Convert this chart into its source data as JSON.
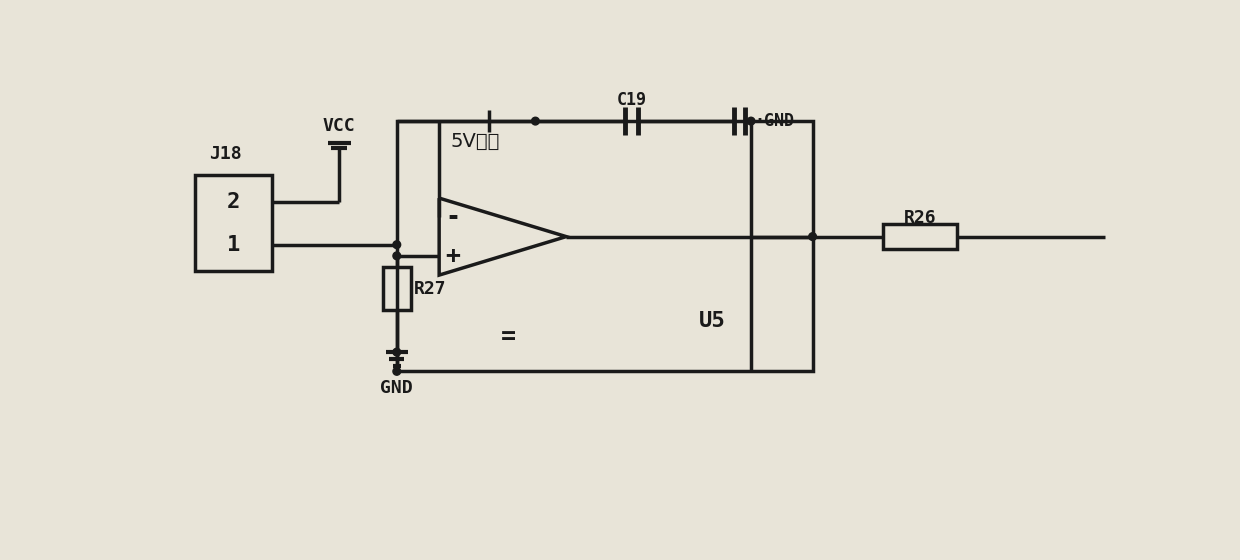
{
  "bg_color": "#e8e4d8",
  "line_color": "#1a1a1a",
  "lw": 2.5,
  "J18_label": "J18",
  "J18_pin2": "2",
  "J18_pin1": "1",
  "VCC_label": "VCC",
  "power_label": "5V电源",
  "C19_label": "C19",
  "GND_label1": "·GND",
  "GND_label2": "GND",
  "U5_label": "U5",
  "R26_label": "R26",
  "R27_label": "R27",
  "opamp_minus": "-",
  "opamp_plus": "+",
  "gnd_equal": "="
}
